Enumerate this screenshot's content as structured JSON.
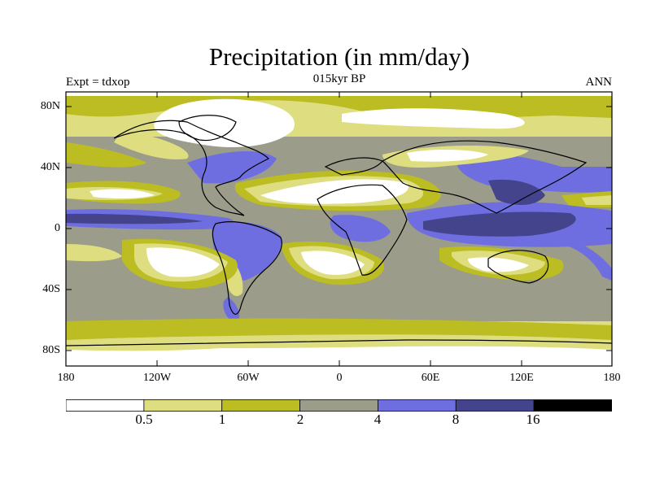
{
  "title": "Precipitation (in mm/day)",
  "left_label": "Expt = tdxop",
  "center_label": "015kyr BP",
  "right_label": "ANN",
  "y_ticks": [
    "80N",
    "40N",
    "0",
    "40S",
    "80S"
  ],
  "x_ticks": [
    "180",
    "120W",
    "60W",
    "0",
    "60E",
    "120E",
    "180"
  ],
  "colorbar": {
    "labels": [
      "0.5",
      "1",
      "2",
      "4",
      "8",
      "16"
    ],
    "colors": [
      "#ffffff",
      "#dede80",
      "#bcbc23",
      "#9c9c8a",
      "#6e6ee0",
      "#44448c",
      "#000000"
    ]
  }
}
